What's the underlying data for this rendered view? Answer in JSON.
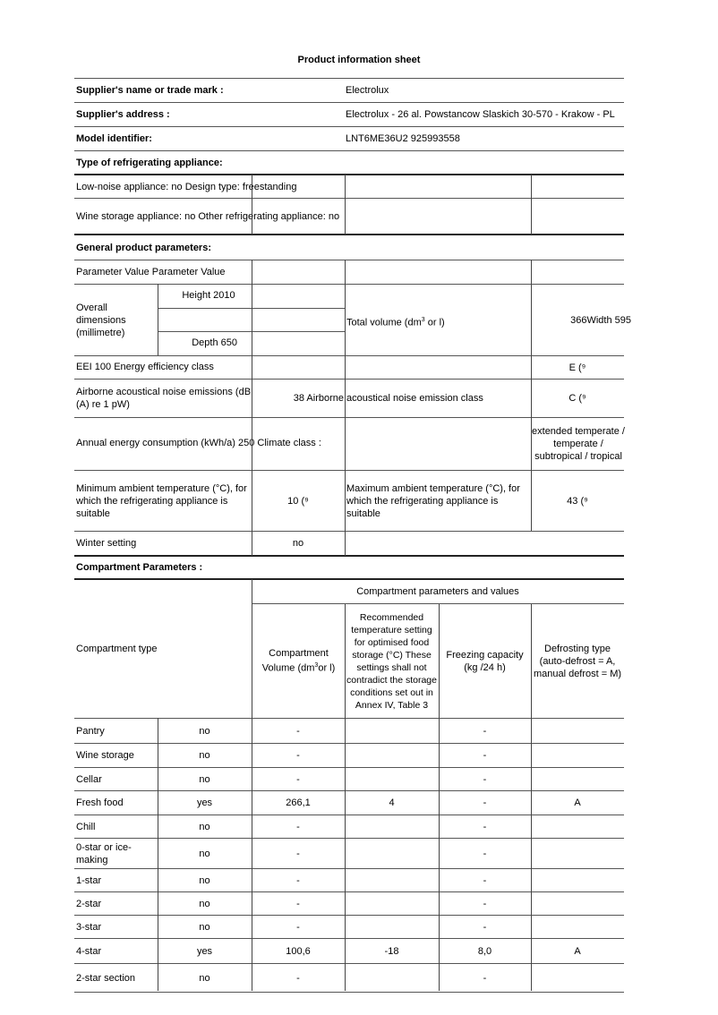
{
  "title": "Product information sheet",
  "supplier": {
    "name_label": "Supplier's name or trade mark :",
    "name": "Electrolux",
    "address_label": "Supplier's address :",
    "address": "Electrolux - 26 al. Powstancow Slaskich 30-570 - Krakow - PL",
    "model_label": "Model identifier:",
    "model": "LNT6ME36U2 925993558"
  },
  "type": {
    "title": "Type of refrigerating appliance:",
    "row1": "Low-noise appliance: no Design type: freestanding",
    "row2": "Wine storage appliance: no Other refrigerating appliance: no"
  },
  "general": {
    "title": "General product parameters:",
    "header": "Parameter Value Parameter Value",
    "dims_label": "Overall dimensions (millimetre)",
    "height": "Height 2010",
    "depth": "Depth 650",
    "total_volume_label": "Total volume (dm",
    "total_volume_sup": "3",
    "total_volume_suffix": " or l)",
    "total_volume_value": "366Width 595",
    "eei": "EEI 100 Energy efficiency class",
    "eei_class": "E (⁹",
    "noise_label": "Airborne acoustical noise emissions (dB (A) re 1 pW)",
    "noise_value": "38 Airborne",
    "noise_class_label": "acoustical noise emission class",
    "noise_class": "C (⁹",
    "annual": "Annual energy consumption (kWh/a) 250 Climate class :",
    "climate": "extended temperate / temperate / subtropical / tropical",
    "min_label": "Minimum ambient temperature (°C), for which the refrigerating appliance is suitable",
    "min_value": "10 (⁹",
    "max_label": "Maximum ambient temperature (°C), for which the refrigerating appliance is suitable",
    "max_value": "43 (⁹",
    "winter_label": "Winter setting",
    "winter_value": "no"
  },
  "compartment": {
    "title": "Compartment Parameters :",
    "group_header": "Compartment parameters and values",
    "type_header": "Compartment type",
    "volume_header": "Compartment Volume (dm",
    "volume_sup": "3",
    "volume_suffix": "or l)",
    "temp_header": "Recommended temperature setting for optimised food storage (°C) These settings shall not contradict the storage conditions set out in Annex IV, Table 3",
    "freeze_header": "Freezing capacity (kg /24 h)",
    "defrost_header": "Defrosting type (auto-defrost = A, manual defrost = M)",
    "rows": [
      {
        "name": "Pantry",
        "present": "no",
        "volume": "-",
        "temp": "",
        "freeze": "-",
        "defrost": ""
      },
      {
        "name": "Wine storage",
        "present": "no",
        "volume": "-",
        "temp": "",
        "freeze": "-",
        "defrost": ""
      },
      {
        "name": "Cellar",
        "present": "no",
        "volume": "-",
        "temp": "",
        "freeze": "-",
        "defrost": ""
      },
      {
        "name": "Fresh food",
        "present": "yes",
        "volume": "266,1",
        "temp": "4",
        "freeze": "-",
        "defrost": "A"
      },
      {
        "name": "Chill",
        "present": "no",
        "volume": "-",
        "temp": "",
        "freeze": "-",
        "defrost": ""
      },
      {
        "name": "0-star or ice-making",
        "present": "no",
        "volume": "-",
        "temp": "",
        "freeze": "-",
        "defrost": ""
      },
      {
        "name": "1-star",
        "present": "no",
        "volume": "-",
        "temp": "",
        "freeze": "-",
        "defrost": ""
      },
      {
        "name": "2-star",
        "present": "no",
        "volume": "-",
        "temp": "",
        "freeze": "-",
        "defrost": ""
      },
      {
        "name": "3-star",
        "present": "no",
        "volume": "-",
        "temp": "",
        "freeze": "-",
        "defrost": ""
      },
      {
        "name": "4-star",
        "present": "yes",
        "volume": "100,6",
        "temp": "-18",
        "freeze": "8,0",
        "defrost": "A"
      },
      {
        "name": "2-star section",
        "present": "no",
        "volume": "-",
        "temp": "",
        "freeze": "-",
        "defrost": ""
      }
    ]
  }
}
